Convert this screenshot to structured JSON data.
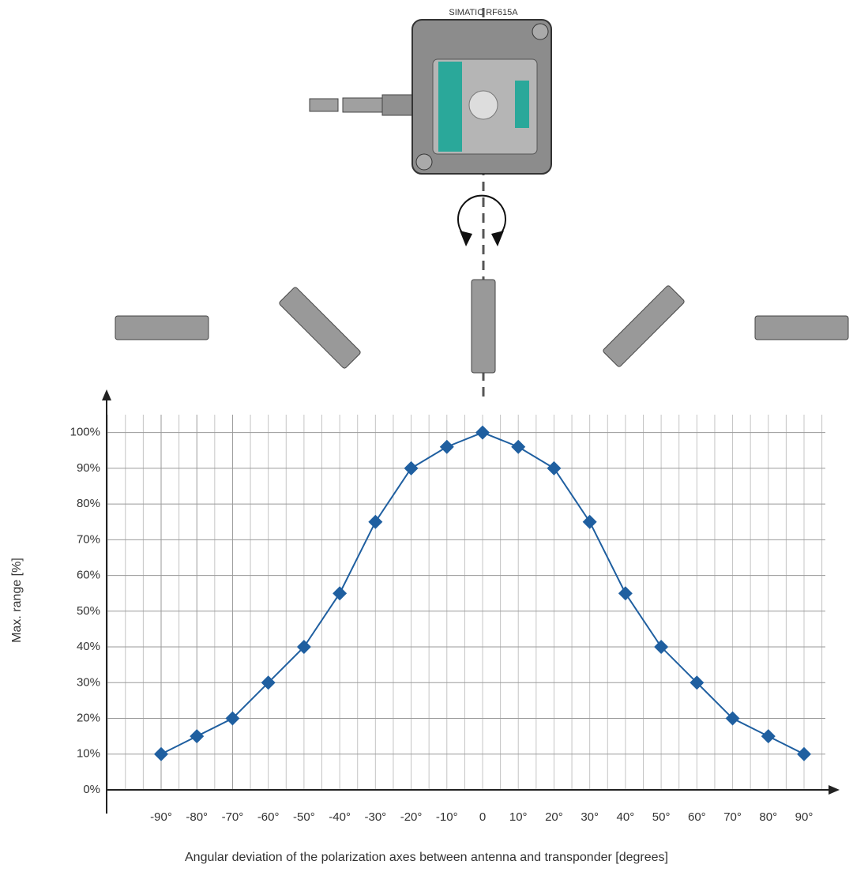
{
  "chart_data": {
    "type": "line",
    "title": "SIMATIC RF615A",
    "x_label": "Angular deviation of the polarization axes between antenna and transponder [degrees]",
    "y_label": "Max. range [%]",
    "categories": [
      "-90°",
      "-80°",
      "-70°",
      "-60°",
      "-50°",
      "-40°",
      "-30°",
      "-20°",
      "-10°",
      "0",
      "10°",
      "20°",
      "30°",
      "40°",
      "50°",
      "60°",
      "70°",
      "80°",
      "90°"
    ],
    "series": [
      {
        "name": "Max. range",
        "color": "#1f5fa0",
        "values": [
          10,
          15,
          20,
          30,
          40,
          55,
          75,
          90,
          96,
          100,
          96,
          90,
          75,
          55,
          40,
          30,
          20,
          15,
          10
        ]
      }
    ],
    "ylim": [
      0,
      105
    ],
    "yticks": [
      {
        "value": 0,
        "label": "0%"
      },
      {
        "value": 10,
        "label": "10%"
      },
      {
        "value": 20,
        "label": "20%"
      },
      {
        "value": 30,
        "label": "30%"
      },
      {
        "value": 40,
        "label": "40%"
      },
      {
        "value": 50,
        "label": "50%"
      },
      {
        "value": 60,
        "label": "60%"
      },
      {
        "value": 70,
        "label": "70%"
      },
      {
        "value": 80,
        "label": "80%"
      },
      {
        "value": 90,
        "label": "90%"
      },
      {
        "value": 100,
        "label": "100%"
      }
    ],
    "grid": true
  }
}
